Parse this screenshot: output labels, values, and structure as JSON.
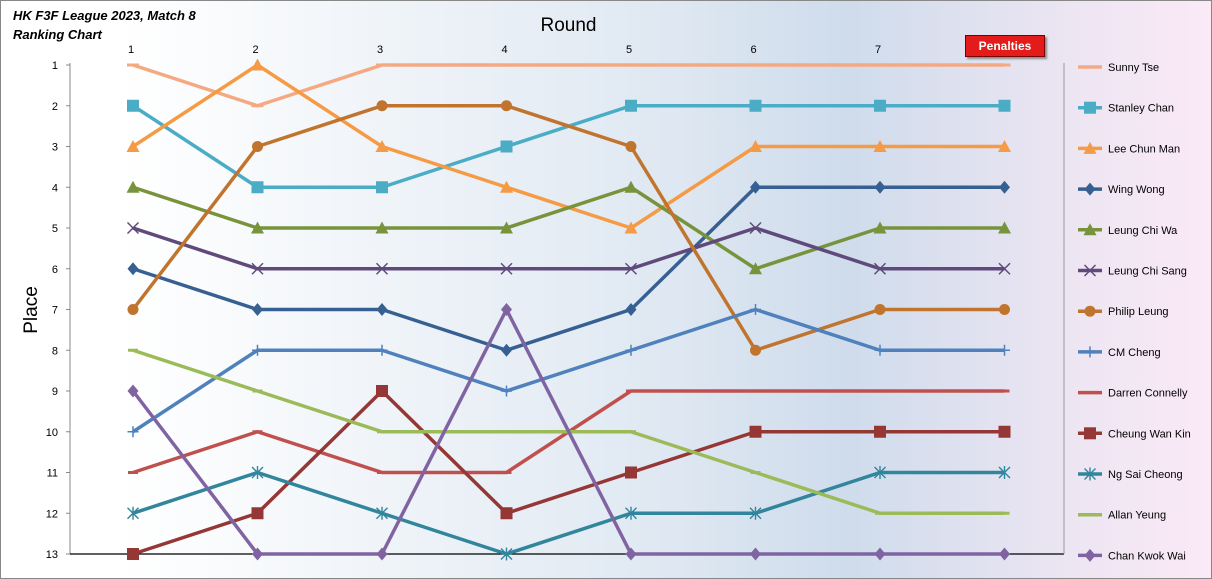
{
  "header": {
    "title_line1": "HK F3F League 2023, Match 8",
    "title_line2": "Ranking Chart",
    "penalties_button": "Penalties"
  },
  "chart_data": {
    "type": "line",
    "title": "HK F3F League 2023, Match 8 Ranking Chart",
    "xlabel": "Round",
    "ylabel": "Place",
    "x": [
      "1",
      "2",
      "3",
      "4",
      "5",
      "6",
      "7",
      ""
    ],
    "ylim": [
      13,
      1
    ],
    "yticks": [
      1,
      2,
      3,
      4,
      5,
      6,
      7,
      8,
      9,
      10,
      11,
      12,
      13
    ],
    "y_inverted": true,
    "grid": false,
    "legend": "right",
    "series": [
      {
        "name": "Sunny Tse",
        "color": "#f5a982",
        "marker": "none",
        "values": [
          1,
          2,
          1,
          1,
          1,
          1,
          1,
          1
        ]
      },
      {
        "name": "Stanley Chan",
        "color": "#4aacc5",
        "marker": "square",
        "values": [
          2,
          4,
          4,
          3,
          2,
          2,
          2,
          2
        ]
      },
      {
        "name": "Lee Chun Man",
        "color": "#f59b45",
        "marker": "triangle",
        "values": [
          3,
          1,
          3,
          4,
          5,
          3,
          3,
          3
        ]
      },
      {
        "name": "Wing Wong",
        "color": "#376092",
        "marker": "diamond",
        "values": [
          6,
          7,
          7,
          8,
          7,
          4,
          4,
          4
        ]
      },
      {
        "name": "Leung Chi Wa",
        "color": "#77933c",
        "marker": "triangle",
        "values": [
          4,
          5,
          5,
          5,
          4,
          6,
          5,
          5
        ]
      },
      {
        "name": "Leung Chi Sang",
        "color": "#604a7b",
        "marker": "x",
        "values": [
          5,
          6,
          6,
          6,
          6,
          5,
          6,
          6
        ]
      },
      {
        "name": "Philip Leung",
        "color": "#c0742e",
        "marker": "circle",
        "values": [
          7,
          3,
          2,
          2,
          3,
          8,
          7,
          7
        ]
      },
      {
        "name": "CM Cheng",
        "color": "#4f81bd",
        "marker": "plus",
        "values": [
          10,
          8,
          8,
          9,
          8,
          7,
          8,
          8
        ]
      },
      {
        "name": "Darren Connelly",
        "color": "#c0504d",
        "marker": "dash",
        "values": [
          11,
          10,
          11,
          11,
          9,
          9,
          9,
          9
        ]
      },
      {
        "name": "Cheung Wan Kin",
        "color": "#953735",
        "marker": "square",
        "values": [
          13,
          12,
          9,
          12,
          11,
          10,
          10,
          10
        ]
      },
      {
        "name": "Ng Sai Cheong",
        "color": "#31859c",
        "marker": "star",
        "values": [
          12,
          11,
          12,
          13,
          12,
          12,
          11,
          11
        ]
      },
      {
        "name": "Allan Yeung",
        "color": "#9bbb59",
        "marker": "dash",
        "values": [
          8,
          9,
          10,
          10,
          10,
          11,
          12,
          12
        ]
      },
      {
        "name": "Chan Kwok Wai",
        "color": "#8064a2",
        "marker": "diamond",
        "values": [
          9,
          13,
          13,
          7,
          13,
          13,
          13,
          13
        ]
      }
    ]
  }
}
